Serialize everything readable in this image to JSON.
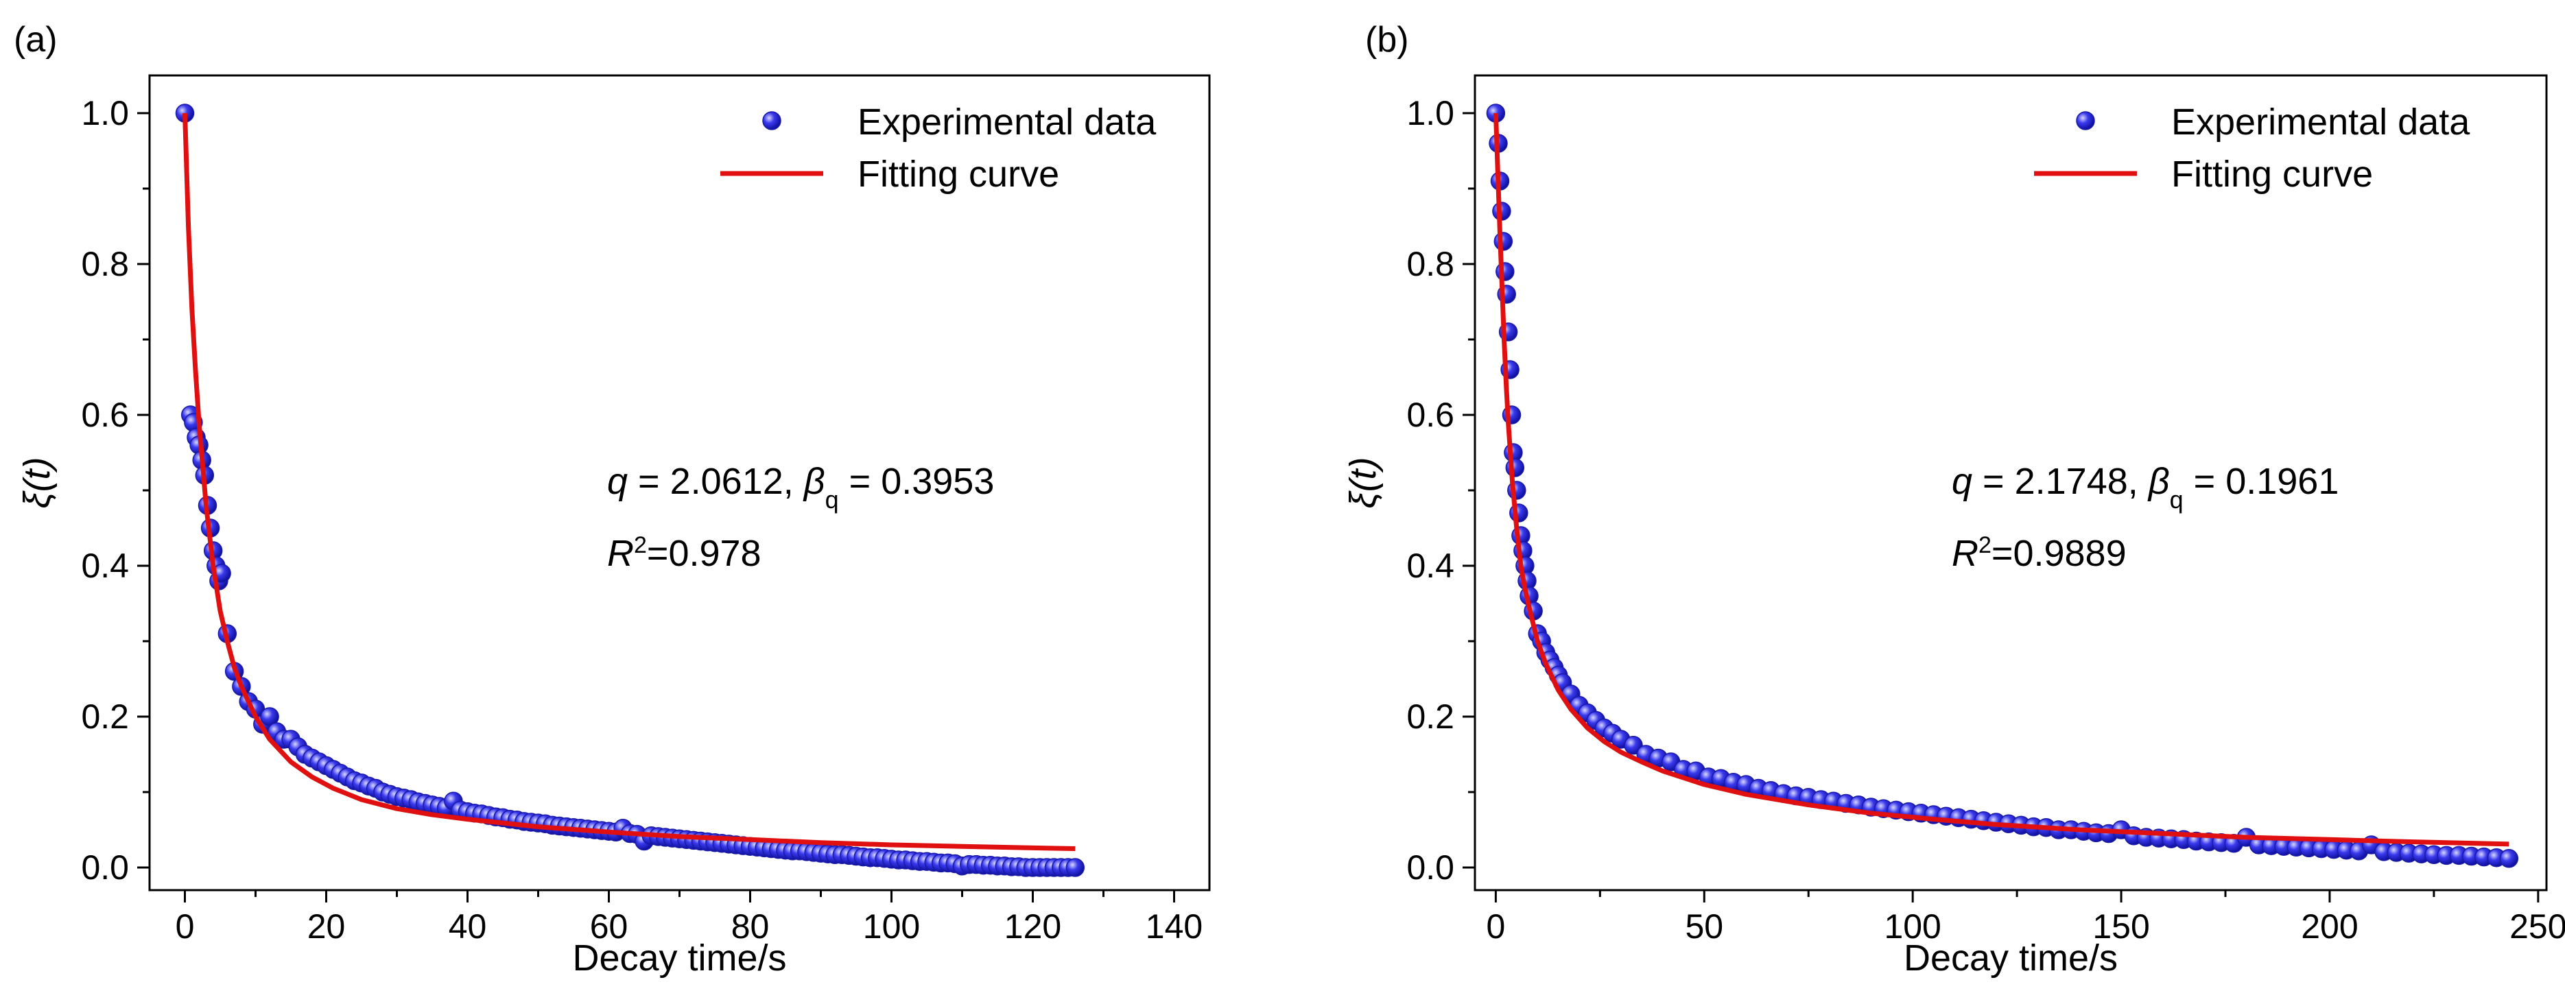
{
  "chart_data": [
    {
      "type": "scatter",
      "panel_label": "(a)",
      "xlabel": "Decay time/s",
      "ylabel": "ξ(t)",
      "xlim": [
        -5,
        145
      ],
      "ylim": [
        -0.03,
        1.05
      ],
      "xticks": [
        0,
        20,
        40,
        60,
        80,
        100,
        120,
        140
      ],
      "xtick_labels": [
        "0",
        "20",
        "40",
        "60",
        "80",
        "100",
        "120",
        "140"
      ],
      "yticks": [
        0.0,
        0.2,
        0.4,
        0.6,
        0.8,
        1.0
      ],
      "ytick_labels": [
        "0.0",
        "0.2",
        "0.4",
        "0.6",
        "0.8",
        "1.0"
      ],
      "legend": [
        "Experimental data",
        "Fitting curve"
      ],
      "legend_position": "top-right",
      "annotation": {
        "q_label": "q",
        "q_value": " = 2.0612, ",
        "beta_label": "β",
        "beta_sub": "q",
        "beta_value": " = 0.3953",
        "r_label": "R",
        "r_sup": "2",
        "r_value": "=0.978"
      },
      "series": [
        {
          "name": "Experimental data",
          "style": "markers",
          "color": "#2323e0",
          "x": [
            0,
            0.8,
            1.2,
            1.6,
            2.0,
            2.4,
            2.8,
            3.2,
            3.6,
            4.0,
            4.4,
            4.8,
            5.2,
            6,
            7,
            8,
            9,
            10,
            11,
            12,
            13,
            14,
            15,
            16,
            17,
            18,
            19,
            20,
            21,
            22,
            23,
            24,
            25,
            26,
            27,
            28,
            29,
            30,
            31,
            32,
            33,
            34,
            35,
            36,
            37,
            38,
            39,
            40,
            41,
            42,
            43,
            44,
            45,
            46,
            47,
            48,
            49,
            50,
            51,
            52,
            53,
            54,
            55,
            56,
            57,
            58,
            59,
            60,
            61,
            62,
            63,
            64,
            65,
            66,
            67,
            68,
            69,
            70,
            71,
            72,
            73,
            74,
            75,
            76,
            77,
            78,
            79,
            80,
            81,
            82,
            83,
            84,
            85,
            86,
            87,
            88,
            89,
            90,
            91,
            92,
            93,
            94,
            95,
            96,
            97,
            98,
            99,
            100,
            101,
            102,
            103,
            104,
            105,
            106,
            107,
            108,
            109,
            110,
            111,
            112,
            113,
            114,
            115,
            116,
            117,
            118,
            119,
            120,
            121,
            122,
            123,
            124,
            125,
            126
          ],
          "y": [
            1.0,
            0.6,
            0.59,
            0.57,
            0.56,
            0.54,
            0.52,
            0.48,
            0.45,
            0.42,
            0.4,
            0.38,
            0.39,
            0.31,
            0.26,
            0.24,
            0.22,
            0.21,
            0.19,
            0.2,
            0.18,
            0.17,
            0.17,
            0.16,
            0.15,
            0.145,
            0.14,
            0.135,
            0.13,
            0.125,
            0.12,
            0.115,
            0.112,
            0.108,
            0.105,
            0.1,
            0.097,
            0.094,
            0.092,
            0.09,
            0.087,
            0.085,
            0.083,
            0.081,
            0.079,
            0.088,
            0.076,
            0.074,
            0.072,
            0.071,
            0.069,
            0.067,
            0.066,
            0.064,
            0.063,
            0.061,
            0.06,
            0.059,
            0.058,
            0.056,
            0.055,
            0.054,
            0.053,
            0.052,
            0.051,
            0.05,
            0.049,
            0.048,
            0.047,
            0.052,
            0.045,
            0.044,
            0.035,
            0.042,
            0.041,
            0.04,
            0.039,
            0.038,
            0.037,
            0.036,
            0.035,
            0.034,
            0.033,
            0.032,
            0.031,
            0.03,
            0.029,
            0.028,
            0.027,
            0.026,
            0.025,
            0.024,
            0.023,
            0.022,
            0.022,
            0.021,
            0.02,
            0.019,
            0.018,
            0.017,
            0.017,
            0.016,
            0.015,
            0.014,
            0.013,
            0.013,
            0.012,
            0.011,
            0.01,
            0.01,
            0.009,
            0.008,
            0.008,
            0.007,
            0.006,
            0.006,
            0.005,
            0.002,
            0.004,
            0.004,
            0.003,
            0.003,
            0.002,
            0.002,
            0.001,
            0.001,
            0.0,
            0.0,
            0.0,
            0.0,
            0.0,
            0.0,
            0.0,
            0.0
          ]
        },
        {
          "name": "Fitting curve",
          "style": "line",
          "color": "#e01010",
          "x": [
            0,
            0.5,
            1,
            1.5,
            2,
            3,
            4,
            5,
            6,
            7,
            8,
            10,
            12,
            15,
            18,
            21,
            25,
            30,
            35,
            40,
            50,
            60,
            70,
            80,
            90,
            100,
            110,
            120,
            126
          ],
          "y": [
            1.0,
            0.85,
            0.74,
            0.66,
            0.59,
            0.48,
            0.4,
            0.34,
            0.3,
            0.265,
            0.24,
            0.2,
            0.17,
            0.14,
            0.12,
            0.105,
            0.09,
            0.078,
            0.07,
            0.064,
            0.054,
            0.047,
            0.041,
            0.037,
            0.033,
            0.03,
            0.028,
            0.026,
            0.025
          ]
        }
      ]
    },
    {
      "type": "scatter",
      "panel_label": "(b)",
      "xlabel": "Decay time/s",
      "ylabel": "ξ(t)",
      "xlim": [
        -5,
        252
      ],
      "ylim": [
        -0.03,
        1.05
      ],
      "xticks": [
        0,
        50,
        100,
        150,
        200,
        250
      ],
      "xtick_labels": [
        "0",
        "50",
        "100",
        "150",
        "200",
        "250"
      ],
      "yticks": [
        0.0,
        0.2,
        0.4,
        0.6,
        0.8,
        1.0
      ],
      "ytick_labels": [
        "0.0",
        "0.2",
        "0.4",
        "0.6",
        "0.8",
        "1.0"
      ],
      "legend": [
        "Experimental data",
        "Fitting curve"
      ],
      "legend_position": "top-right",
      "annotation": {
        "q_label": "q",
        "q_value": " = 2.1748, ",
        "beta_label": "β",
        "beta_sub": "q",
        "beta_value": " = 0.1961",
        "r_label": "R",
        "r_sup": "2",
        "r_value": "=0.9889"
      },
      "series": [
        {
          "name": "Experimental data",
          "style": "markers",
          "color": "#2323e0",
          "x": [
            0,
            0.6,
            1.0,
            1.4,
            1.8,
            2.2,
            2.6,
            3.0,
            3.4,
            3.8,
            4.2,
            4.6,
            5.0,
            5.5,
            6,
            6.5,
            7,
            7.5,
            8,
            9,
            10,
            11,
            12,
            13,
            14,
            15,
            16,
            18,
            20,
            22,
            24,
            26,
            28,
            30,
            33,
            36,
            39,
            42,
            45,
            48,
            51,
            54,
            57,
            60,
            63,
            66,
            69,
            72,
            75,
            78,
            81,
            84,
            87,
            90,
            93,
            96,
            99,
            102,
            105,
            108,
            111,
            114,
            117,
            120,
            123,
            126,
            129,
            132,
            135,
            138,
            141,
            144,
            147,
            150,
            153,
            156,
            159,
            162,
            165,
            168,
            171,
            174,
            177,
            180,
            183,
            186,
            189,
            192,
            195,
            198,
            201,
            204,
            207,
            210,
            213,
            216,
            219,
            222,
            225,
            228,
            231,
            234,
            237,
            240,
            243
          ],
          "y": [
            1.0,
            0.96,
            0.91,
            0.87,
            0.83,
            0.79,
            0.76,
            0.71,
            0.66,
            0.6,
            0.55,
            0.53,
            0.5,
            0.47,
            0.44,
            0.42,
            0.4,
            0.38,
            0.36,
            0.34,
            0.31,
            0.3,
            0.285,
            0.275,
            0.265,
            0.255,
            0.245,
            0.23,
            0.215,
            0.205,
            0.195,
            0.185,
            0.178,
            0.17,
            0.162,
            0.15,
            0.145,
            0.14,
            0.13,
            0.128,
            0.12,
            0.118,
            0.113,
            0.11,
            0.105,
            0.102,
            0.098,
            0.095,
            0.093,
            0.09,
            0.088,
            0.085,
            0.083,
            0.08,
            0.078,
            0.076,
            0.074,
            0.072,
            0.07,
            0.068,
            0.066,
            0.064,
            0.062,
            0.06,
            0.058,
            0.056,
            0.054,
            0.053,
            0.05,
            0.05,
            0.048,
            0.046,
            0.045,
            0.05,
            0.042,
            0.04,
            0.039,
            0.038,
            0.037,
            0.035,
            0.034,
            0.033,
            0.032,
            0.04,
            0.03,
            0.029,
            0.028,
            0.027,
            0.026,
            0.025,
            0.024,
            0.023,
            0.022,
            0.03,
            0.021,
            0.02,
            0.019,
            0.018,
            0.017,
            0.016,
            0.016,
            0.015,
            0.014,
            0.013,
            0.012
          ]
        },
        {
          "name": "Fitting curve",
          "style": "line",
          "color": "#e01010",
          "x": [
            0,
            0.5,
            1,
            1.5,
            2,
            2.5,
            3,
            4,
            5,
            6,
            7,
            8,
            10,
            12,
            15,
            18,
            22,
            26,
            30,
            35,
            40,
            50,
            60,
            75,
            90,
            105,
            120,
            140,
            160,
            180,
            200,
            220,
            243
          ],
          "y": [
            1.0,
            0.92,
            0.84,
            0.77,
            0.7,
            0.64,
            0.59,
            0.51,
            0.45,
            0.4,
            0.37,
            0.345,
            0.3,
            0.27,
            0.235,
            0.21,
            0.185,
            0.167,
            0.153,
            0.14,
            0.128,
            0.11,
            0.097,
            0.083,
            0.072,
            0.064,
            0.057,
            0.05,
            0.045,
            0.04,
            0.037,
            0.034,
            0.031
          ]
        }
      ]
    }
  ]
}
